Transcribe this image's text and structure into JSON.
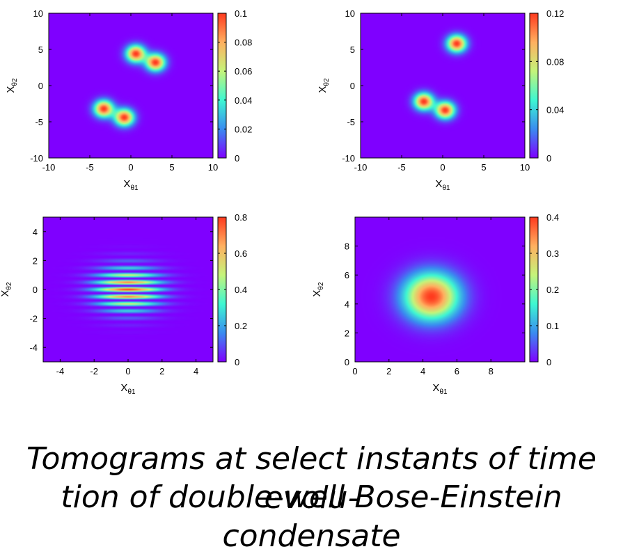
{
  "figure": {
    "caption_line1": "Tomograms at select instants of time evolu-",
    "caption_line2": "tion of double-well Bose-Einstein condensate"
  },
  "colors": {
    "colormap": [
      "#7f00ff",
      "#3a8cf0",
      "#3ef7d2",
      "#c5f47a",
      "#ffb060",
      "#ff3a1e"
    ],
    "background": "#8000ff"
  },
  "chart_data": [
    {
      "type": "heatmap",
      "panel": "top-left",
      "xlabel": "X",
      "xlabel_sub": "θ1",
      "ylabel": "X",
      "ylabel_sub": "θ2",
      "xlim": [
        -10,
        10
      ],
      "ylim": [
        -10,
        10
      ],
      "xticks": [
        -10,
        -5,
        0,
        5,
        10
      ],
      "yticks": [
        -10,
        -5,
        0,
        5,
        10
      ],
      "colorbar_range": [
        0,
        0.1
      ],
      "colorbar_ticks": [
        0,
        0.02,
        0.04,
        0.06,
        0.08,
        0.1
      ],
      "peaks": [
        {
          "x": 0.6,
          "y": 4.4,
          "amplitude": 0.1,
          "width": 0.8
        },
        {
          "x": 3.0,
          "y": 3.2,
          "amplitude": 0.1,
          "width": 0.8
        },
        {
          "x": -3.3,
          "y": -3.2,
          "amplitude": 0.1,
          "width": 0.8
        },
        {
          "x": -0.8,
          "y": -4.4,
          "amplitude": 0.1,
          "width": 0.8
        }
      ]
    },
    {
      "type": "heatmap",
      "panel": "top-right",
      "xlabel": "X",
      "xlabel_sub": "θ1",
      "ylabel": "X",
      "ylabel_sub": "θ2",
      "xlim": [
        -10,
        10
      ],
      "ylim": [
        -10,
        10
      ],
      "xticks": [
        -10,
        -5,
        0,
        5,
        10
      ],
      "yticks": [
        -10,
        -5,
        0,
        5,
        10
      ],
      "colorbar_range": [
        0,
        0.12
      ],
      "colorbar_ticks": [
        0,
        0.04,
        0.08,
        0.12
      ],
      "peaks": [
        {
          "x": 1.7,
          "y": 5.8,
          "amplitude": 0.12,
          "width": 0.8
        },
        {
          "x": -2.3,
          "y": -2.2,
          "amplitude": 0.12,
          "width": 0.8
        },
        {
          "x": 0.3,
          "y": -3.4,
          "amplitude": 0.12,
          "width": 0.8
        }
      ]
    },
    {
      "type": "heatmap",
      "panel": "bottom-left",
      "xlabel": "X",
      "xlabel_sub": "θ1",
      "ylabel": "X",
      "ylabel_sub": "θ2",
      "xlim": [
        -5,
        5
      ],
      "ylim": [
        -5,
        5
      ],
      "xticks": [
        -4,
        -2,
        0,
        2,
        4
      ],
      "yticks": [
        -4,
        -2,
        0,
        2,
        4
      ],
      "colorbar_range": [
        0,
        0.8
      ],
      "colorbar_ticks": [
        0,
        0.2,
        0.4,
        0.6,
        0.8
      ],
      "fringes": {
        "center_x": 0,
        "center_y": 0,
        "sigma_x": 1.3,
        "sigma_y": 1.0,
        "fringe_period": 0.5,
        "amplitude": 0.8
      }
    },
    {
      "type": "heatmap",
      "panel": "bottom-right",
      "xlabel": "X",
      "xlabel_sub": "θ1",
      "ylabel": "X",
      "ylabel_sub": "θ2",
      "xlim": [
        0,
        10
      ],
      "ylim": [
        0,
        10
      ],
      "xticks": [
        0,
        2,
        4,
        6,
        8
      ],
      "yticks": [
        0,
        2,
        4,
        6,
        8
      ],
      "colorbar_range": [
        0,
        0.4
      ],
      "colorbar_ticks": [
        0,
        0.1,
        0.2,
        0.3,
        0.4
      ],
      "peaks": [
        {
          "x": 4.5,
          "y": 4.5,
          "amplitude": 0.4,
          "width": 1.1
        }
      ]
    }
  ]
}
